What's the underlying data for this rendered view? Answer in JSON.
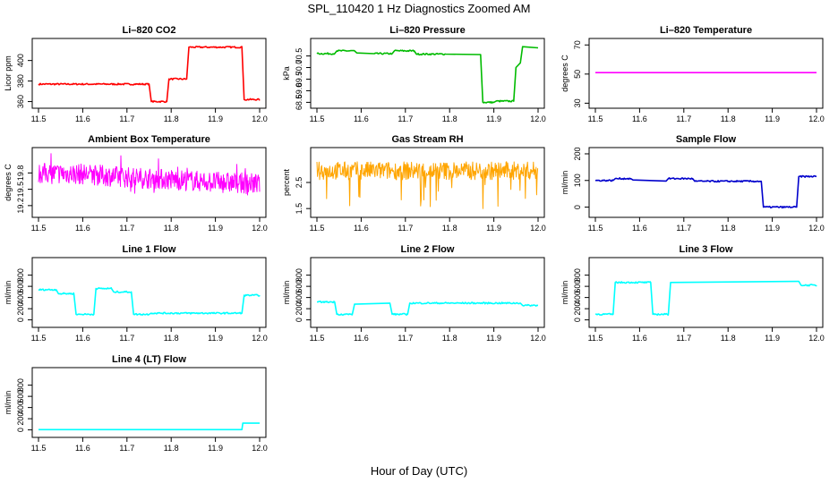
{
  "figure": {
    "title": "SPL_110420  1 Hz Diagnostics Zoomed AM",
    "xlabel": "Hour of Day (UTC)"
  },
  "chart_data": [
    {
      "type": "line",
      "title": "Li–820 CO2",
      "ylabel": "Licor ppm",
      "color": "#ff0000",
      "xlim": [
        11.5,
        12.0
      ],
      "xticks": [
        "11.5",
        "11.6",
        "11.7",
        "11.8",
        "11.9",
        "12.0"
      ],
      "ylim": [
        357,
        418
      ],
      "yticks": [
        "360",
        "380",
        "400"
      ],
      "series": [
        {
          "x": [
            11.5,
            11.75,
            11.755,
            11.79,
            11.795,
            11.835,
            11.84,
            11.96,
            11.965,
            12.0
          ],
          "y": [
            377,
            377,
            360,
            360,
            382,
            382,
            413,
            413,
            362,
            362
          ]
        }
      ]
    },
    {
      "type": "line",
      "title": "Li–820 Pressure",
      "ylabel": "kPa",
      "color": "#00bb00",
      "xlim": [
        11.5,
        12.0
      ],
      "xticks": [
        "11.5",
        "11.6",
        "11.7",
        "11.8",
        "11.9",
        "12.0"
      ],
      "ylim": [
        68.4,
        71.1
      ],
      "yticks": [
        "68.5",
        "69.0",
        "69.5",
        "70.0",
        "70.5"
      ],
      "series": [
        {
          "x": [
            11.5,
            11.54,
            11.545,
            11.585,
            11.59,
            11.63,
            11.67,
            11.675,
            11.72,
            11.725,
            11.79,
            11.87,
            11.875,
            11.9,
            11.905,
            11.945,
            11.95,
            11.96,
            11.965,
            12.0
          ],
          "y": [
            70.6,
            70.6,
            70.72,
            70.72,
            70.63,
            70.6,
            70.6,
            70.72,
            70.72,
            70.58,
            70.58,
            70.56,
            68.5,
            68.5,
            68.55,
            68.55,
            70.0,
            70.2,
            70.9,
            70.85
          ]
        }
      ]
    },
    {
      "type": "line",
      "title": "Li–820 Temperature",
      "ylabel": "degrees C",
      "color": "#ff00ff",
      "xlim": [
        11.5,
        12.0
      ],
      "xticks": [
        "11.5",
        "11.6",
        "11.7",
        "11.8",
        "11.9",
        "12.0"
      ],
      "ylim": [
        29,
        72
      ],
      "yticks": [
        "30",
        "50",
        "70"
      ],
      "series": [
        {
          "x": [
            11.5,
            12.0
          ],
          "y": [
            51,
            51
          ]
        }
      ]
    },
    {
      "type": "line",
      "title": "Ambient Box Temperature",
      "ylabel": "degrees C",
      "color": "#ff00ff",
      "xlim": [
        11.5,
        12.0
      ],
      "xticks": [
        "11.5",
        "11.6",
        "11.7",
        "11.8",
        "11.9",
        "12.0"
      ],
      "ylim": [
        19.05,
        20.2
      ],
      "yticks": [
        "19.2",
        "19.5",
        "19.8"
      ],
      "series": [
        {
          "x": [
            11.5,
            11.6,
            11.7,
            11.8,
            11.9,
            12.0
          ],
          "y": [
            19.8,
            19.78,
            19.72,
            19.68,
            19.63,
            19.6
          ]
        }
      ]
    },
    {
      "type": "line",
      "title": "Gas Stream RH",
      "ylabel": "percent",
      "color": "#ffa500",
      "xlim": [
        11.5,
        12.0
      ],
      "xticks": [
        "11.5",
        "11.6",
        "11.7",
        "11.8",
        "11.9",
        "12.0"
      ],
      "ylim": [
        1.3,
        3.7
      ],
      "yticks": [
        "1.5",
        "2.5"
      ],
      "series": [
        {
          "x": [
            11.5,
            12.0
          ],
          "y": [
            2.95,
            2.95
          ]
        }
      ]
    },
    {
      "type": "line",
      "title": "Sample Flow",
      "ylabel": "ml/min",
      "color": "#0000cc",
      "xlim": [
        11.5,
        12.0
      ],
      "xticks": [
        "11.5",
        "11.6",
        "11.7",
        "11.8",
        "11.9",
        "12.0"
      ],
      "ylim": [
        -25,
        210
      ],
      "yticks": [
        "0",
        "100",
        "200"
      ],
      "series": [
        {
          "x": [
            11.5,
            11.54,
            11.545,
            11.58,
            11.585,
            11.66,
            11.665,
            11.72,
            11.725,
            11.875,
            11.88,
            11.955,
            11.96,
            12.0
          ],
          "y": [
            100,
            100,
            107,
            107,
            102,
            98,
            107,
            107,
            97,
            97,
            0,
            0,
            115,
            115
          ]
        }
      ]
    },
    {
      "type": "line",
      "title": "Line 1 Flow",
      "ylabel": "ml/min",
      "color": "#00ffff",
      "xlim": [
        11.5,
        12.0
      ],
      "xticks": [
        "11.5",
        "11.6",
        "11.7",
        "11.8",
        "11.9",
        "12.0"
      ],
      "ylim": [
        -70,
        1050
      ],
      "yticks": [
        "0",
        "200",
        "400",
        "600",
        "800"
      ],
      "series": [
        {
          "x": [
            11.5,
            11.54,
            11.545,
            11.58,
            11.585,
            11.625,
            11.63,
            11.665,
            11.67,
            11.71,
            11.715,
            11.75,
            11.755,
            11.96,
            11.965,
            12.0
          ],
          "y": [
            540,
            540,
            470,
            470,
            100,
            100,
            560,
            560,
            500,
            500,
            100,
            100,
            120,
            120,
            440,
            440
          ]
        }
      ]
    },
    {
      "type": "line",
      "title": "Line 2 Flow",
      "ylabel": "ml/min",
      "color": "#00ffff",
      "xlim": [
        11.5,
        12.0
      ],
      "xticks": [
        "11.5",
        "11.6",
        "11.7",
        "11.8",
        "11.9",
        "12.0"
      ],
      "ylim": [
        -70,
        1050
      ],
      "yticks": [
        "0",
        "200",
        "400",
        "600",
        "800"
      ],
      "series": [
        {
          "x": [
            11.5,
            11.54,
            11.545,
            11.58,
            11.585,
            11.665,
            11.67,
            11.705,
            11.71,
            11.96,
            11.965,
            12.0
          ],
          "y": [
            320,
            320,
            100,
            100,
            280,
            300,
            100,
            100,
            300,
            300,
            260,
            260
          ]
        }
      ]
    },
    {
      "type": "line",
      "title": "Line 3 Flow",
      "ylabel": "ml/min",
      "color": "#00ffff",
      "xlim": [
        11.5,
        12.0
      ],
      "xticks": [
        "11.5",
        "11.6",
        "11.7",
        "11.8",
        "11.9",
        "12.0"
      ],
      "ylim": [
        -70,
        1050
      ],
      "yticks": [
        "0",
        "200",
        "400",
        "600",
        "800"
      ],
      "series": [
        {
          "x": [
            11.5,
            11.54,
            11.545,
            11.625,
            11.63,
            11.665,
            11.67,
            11.96,
            11.965,
            12.0
          ],
          "y": [
            100,
            100,
            670,
            670,
            100,
            100,
            670,
            690,
            620,
            620
          ]
        }
      ]
    },
    {
      "type": "line",
      "title": "Line 4 (LT) Flow",
      "ylabel": "ml/min",
      "color": "#00ffff",
      "xlim": [
        11.5,
        12.0
      ],
      "xticks": [
        "11.5",
        "11.6",
        "11.7",
        "11.8",
        "11.9",
        "12.0"
      ],
      "ylim": [
        -70,
        1050
      ],
      "yticks": [
        "0",
        "200",
        "400",
        "600",
        "800"
      ],
      "series": [
        {
          "x": [
            11.5,
            11.96,
            11.962,
            12.0
          ],
          "y": [
            5,
            5,
            120,
            120
          ]
        }
      ]
    }
  ]
}
